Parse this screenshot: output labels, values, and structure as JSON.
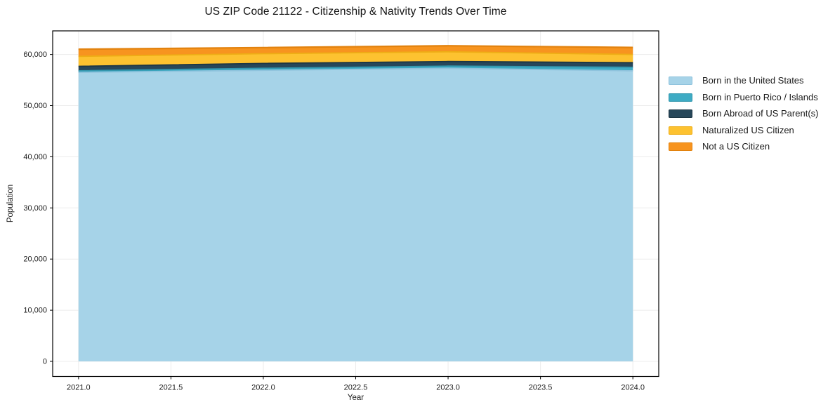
{
  "figure": {
    "title": "US ZIP Code 21122 - Citizenship & Nativity Trends Over Time",
    "xlabel": "Year",
    "ylabel": "Population"
  },
  "chart_data": {
    "type": "area",
    "stacked": true,
    "title": "US ZIP Code 21122 - Citizenship & Nativity Trends Over Time",
    "xlabel": "Year",
    "ylabel": "Population",
    "x": [
      2021,
      2022,
      2023,
      2024
    ],
    "series": [
      {
        "name": "Born in the United States",
        "color": "#a6d3e8",
        "edge_color": "#8fc3dd",
        "values": [
          56500,
          56900,
          57300,
          56800
        ]
      },
      {
        "name": "Born in Puerto Rico / Islands",
        "color": "#3eabc4",
        "edge_color": "#3397ae",
        "values": [
          300,
          400,
          420,
          690
        ]
      },
      {
        "name": "Born Abroad of US Parent(s)",
        "color": "#27475a",
        "edge_color": "#1d3644",
        "values": [
          880,
          950,
          900,
          910
        ]
      },
      {
        "name": "Naturalized US Citizen",
        "color": "#fdc230",
        "edge_color": "#eead15",
        "values": [
          1950,
          1900,
          1900,
          1600
        ]
      },
      {
        "name": "Not a US Citizen",
        "color": "#f7941f",
        "edge_color": "#e2820e",
        "values": [
          1400,
          1200,
          1180,
          1370
        ]
      }
    ],
    "stacked_totals": [
      61030,
      61350,
      61700,
      61370
    ],
    "xlim": [
      2020.86,
      2024.14
    ],
    "ylim": [
      -2950,
      64610
    ],
    "xticks": [
      {
        "v": 2021.0,
        "label": "2021.0"
      },
      {
        "v": 2021.5,
        "label": "2021.5"
      },
      {
        "v": 2022.0,
        "label": "2022.0"
      },
      {
        "v": 2022.5,
        "label": "2022.5"
      },
      {
        "v": 2023.0,
        "label": "2023.0"
      },
      {
        "v": 2023.5,
        "label": "2023.5"
      },
      {
        "v": 2024.0,
        "label": "2024.0"
      }
    ],
    "yticks": [
      {
        "v": 0,
        "label": "0"
      },
      {
        "v": 10000,
        "label": "10,000"
      },
      {
        "v": 20000,
        "label": "20,000"
      },
      {
        "v": 30000,
        "label": "30,000"
      },
      {
        "v": 40000,
        "label": "40,000"
      },
      {
        "v": 50000,
        "label": "50,000"
      },
      {
        "v": 60000,
        "label": "60,000"
      }
    ],
    "grid": true,
    "grid_color": "#ececec",
    "spine_color": "#000000",
    "legend_position": "right-outside"
  }
}
